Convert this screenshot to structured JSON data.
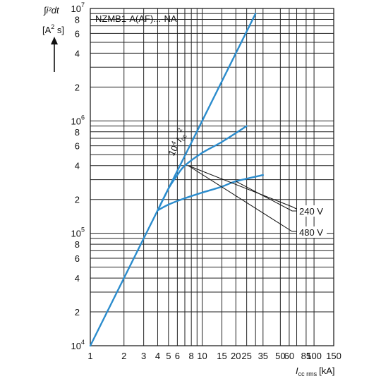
{
  "chart_data": {
    "type": "line",
    "title": "NZMB1-A(AF)...-NA",
    "xscale": "log",
    "yscale": "log",
    "xlim": [
      1,
      150
    ],
    "ylim": [
      10000,
      10000000
    ],
    "grid": true,
    "ylabel": {
      "integral": "∫i²dt",
      "unit_open": "[A",
      "unit_exp": "2",
      "unit_close": " s]"
    },
    "xlabel": {
      "main": "I",
      "sub": "cc rms",
      "unit": "[kA]"
    },
    "x_tick_labels": [
      {
        "v": 1,
        "t": "1"
      },
      {
        "v": 2,
        "t": "2"
      },
      {
        "v": 3,
        "t": "3"
      },
      {
        "v": 4,
        "t": "4"
      },
      {
        "v": 5,
        "t": "5"
      },
      {
        "v": 6,
        "t": "6"
      },
      {
        "v": 8,
        "t": "8"
      },
      {
        "v": 10,
        "t": "10"
      },
      {
        "v": 15,
        "t": "15"
      },
      {
        "v": 20,
        "t": "20"
      },
      {
        "v": 25,
        "t": "25"
      },
      {
        "v": 35,
        "t": "35"
      },
      {
        "v": 50,
        "t": "50"
      },
      {
        "v": 60,
        "t": "60"
      },
      {
        "v": 85,
        "t": "85"
      },
      {
        "v": 100,
        "t": "100"
      },
      {
        "v": 150,
        "t": "150"
      }
    ],
    "y_tick_labels": [
      {
        "v": 10000,
        "base": "10",
        "exp": "4"
      },
      {
        "v": 20000,
        "t": "2"
      },
      {
        "v": 40000,
        "t": "4"
      },
      {
        "v": 60000,
        "t": "6"
      },
      {
        "v": 80000,
        "t": "8"
      },
      {
        "v": 100000,
        "base": "10",
        "exp": "5"
      },
      {
        "v": 200000,
        "t": "2"
      },
      {
        "v": 400000,
        "t": "4"
      },
      {
        "v": 600000,
        "t": "6"
      },
      {
        "v": 800000,
        "t": "8"
      },
      {
        "v": 1000000,
        "base": "10",
        "exp": "6"
      },
      {
        "v": 2000000,
        "t": "2"
      },
      {
        "v": 4000000,
        "t": "4"
      },
      {
        "v": 6000000,
        "t": "6"
      },
      {
        "v": 8000000,
        "t": "8"
      },
      {
        "v": 10000000,
        "base": "10",
        "exp": "7"
      }
    ],
    "series": [
      {
        "name": "10⁴ Icc²",
        "points": [
          [
            1,
            10000
          ],
          [
            30,
            9000000
          ]
        ]
      },
      {
        "name": "480 V",
        "points": [
          [
            4,
            160000
          ],
          [
            5,
            250000
          ],
          [
            6,
            330000
          ],
          [
            7,
            400000
          ],
          [
            10,
            520000
          ],
          [
            15,
            650000
          ],
          [
            25,
            900000
          ]
        ]
      },
      {
        "name": "240 V",
        "points": [
          [
            4,
            160000
          ],
          [
            5,
            180000
          ],
          [
            7,
            205000
          ],
          [
            10,
            230000
          ],
          [
            15,
            260000
          ],
          [
            20,
            290000
          ],
          [
            35,
            330000
          ]
        ]
      }
    ],
    "annotations": {
      "envelope": {
        "base": "10",
        "exp": "4",
        "var": "I",
        "sub": "cc",
        "exp2": "2"
      },
      "v240": "240 V",
      "v480": "480 V"
    },
    "colors": {
      "curve": "#2b8ccd",
      "grid": "#222222",
      "text": "#111111"
    }
  }
}
